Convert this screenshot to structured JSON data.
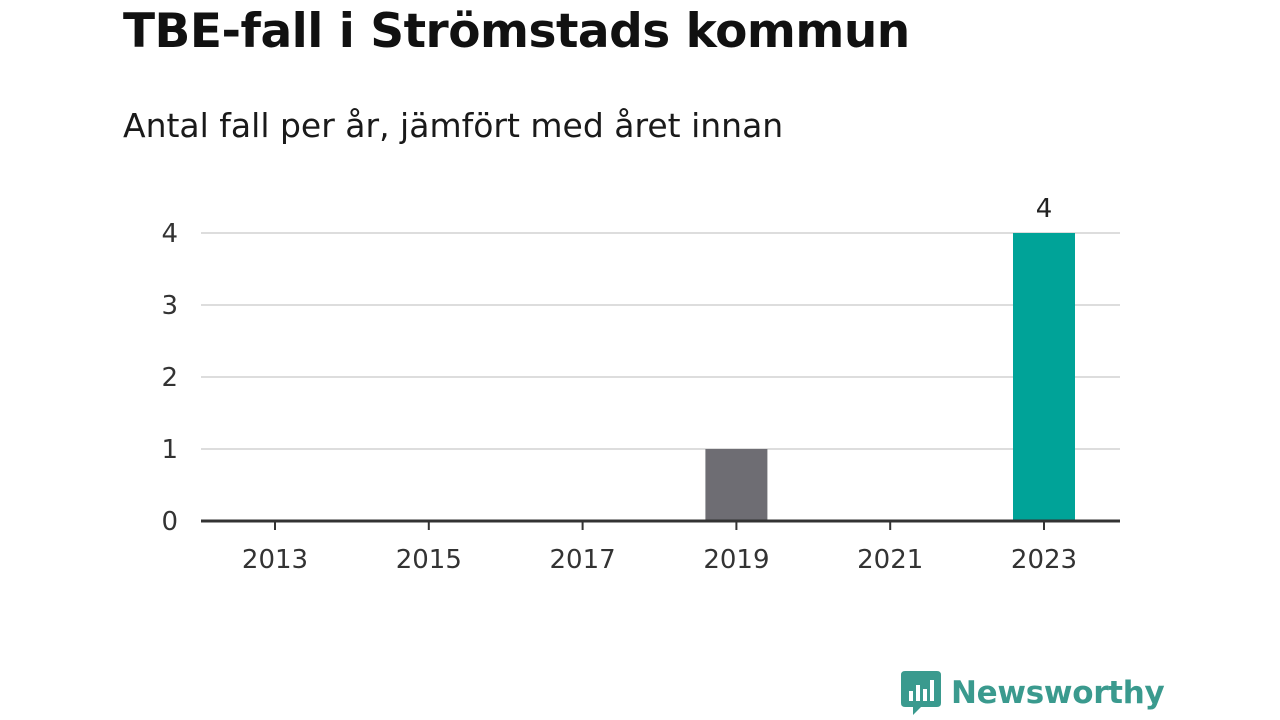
{
  "title": "TBE-fall i Strömstads kommun",
  "subtitle": "Antal fall per år, jämfört med året innan",
  "brand": {
    "name": "Newsworthy",
    "icon": "newsworthy-bar-chart-logo-icon",
    "color": "#3a9a8e"
  },
  "colors": {
    "previous_year": "#6e6d73",
    "current_year": "#00a398",
    "grid": "#dddddd",
    "axis": "#333333"
  },
  "chart_data": {
    "type": "bar",
    "categories": [
      "2013",
      "2014",
      "2015",
      "2016",
      "2017",
      "2018",
      "2019",
      "2020",
      "2021",
      "2022",
      "2023"
    ],
    "x_tick_labels": [
      "2013",
      "2015",
      "2017",
      "2019",
      "2021",
      "2023"
    ],
    "values": [
      0,
      0,
      0,
      0,
      0,
      0,
      1,
      0,
      0,
      0,
      4
    ],
    "highlight": "2023",
    "data_labels": [
      {
        "category": "2023",
        "text": "4"
      }
    ],
    "y_ticks": [
      "0",
      "1",
      "2",
      "3",
      "4"
    ],
    "ylim": [
      0,
      4
    ],
    "grid": true,
    "legend": "none",
    "xlabel": "",
    "ylabel": ""
  }
}
